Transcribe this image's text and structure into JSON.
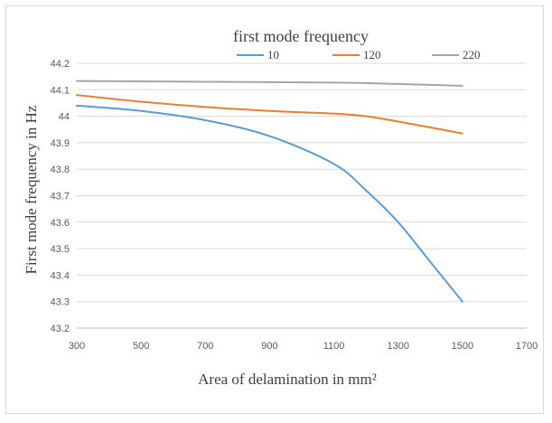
{
  "chart_data": {
    "type": "line",
    "title": "first mode frequency",
    "xlabel": "Area of delamination  in mm²",
    "ylabel": "First mode frequency  in Hz",
    "xlim": [
      300,
      1700
    ],
    "ylim": [
      43.2,
      44.2
    ],
    "xticks": [
      "300",
      "500",
      "700",
      "900",
      "1100",
      "1300",
      "1500",
      "1700"
    ],
    "yticks": [
      "43.2",
      "43.3",
      "43.4",
      "43.5",
      "43.6",
      "43.7",
      "43.8",
      "43.9",
      "44",
      "44.1",
      "44.2"
    ],
    "grid": "horizontal",
    "legend_position": "top",
    "series": [
      {
        "name": "10",
        "color": "#5b9bd5",
        "x": [
          300,
          500,
          700,
          900,
          1100,
          1200,
          1300,
          1400,
          1500
        ],
        "y": [
          44.04,
          44.02,
          43.985,
          43.925,
          43.82,
          43.72,
          43.6,
          43.45,
          43.3
        ]
      },
      {
        "name": "120",
        "color": "#ed7d31",
        "x": [
          300,
          500,
          700,
          900,
          1100,
          1200,
          1300,
          1500
        ],
        "y": [
          44.08,
          44.055,
          44.035,
          44.02,
          44.01,
          44.0,
          43.98,
          43.935
        ]
      },
      {
        "name": "220",
        "color": "#a5a5a5",
        "x": [
          300,
          700,
          1100,
          1300,
          1500
        ],
        "y": [
          44.133,
          44.13,
          44.127,
          44.122,
          44.115
        ]
      }
    ]
  }
}
